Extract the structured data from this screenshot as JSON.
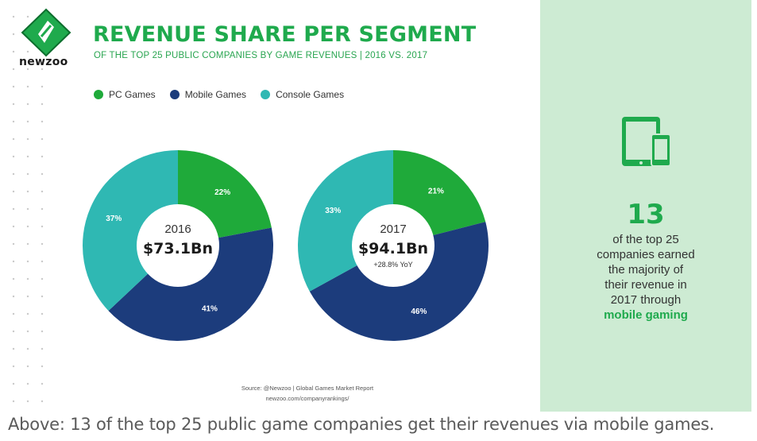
{
  "brand": {
    "name": "newzoo",
    "accent": "#1faa4d"
  },
  "title": "REVENUE SHARE PER SEGMENT",
  "subtitle": "OF THE TOP 25 PUBLIC COMPANIES BY GAME REVENUES | 2016 VS. 2017",
  "legend": [
    {
      "label": "PC Games",
      "color": "#1faa3a"
    },
    {
      "label": "Mobile Games",
      "color": "#1c3c7c"
    },
    {
      "label": "Console Games",
      "color": "#2fb8b3"
    }
  ],
  "chart_data": [
    {
      "type": "pie",
      "title": "2016",
      "center_year": "2016",
      "center_value": "$73.1Bn",
      "center_note": "",
      "categories": [
        "PC Games",
        "Mobile Games",
        "Console Games"
      ],
      "values": [
        22,
        41,
        37
      ],
      "labels": [
        "22%",
        "41%",
        "37%"
      ]
    },
    {
      "type": "pie",
      "title": "2017",
      "center_year": "2017",
      "center_value": "$94.1Bn",
      "center_note": "+28.8% YoY",
      "categories": [
        "PC Games",
        "Mobile Games",
        "Console Games"
      ],
      "values": [
        21,
        46,
        33
      ],
      "labels": [
        "21%",
        "46%",
        "33%"
      ]
    }
  ],
  "source": {
    "line1": "Source: @Newzoo | Global Games Market Report",
    "line2": "newzoo.com/companyrankings/"
  },
  "side_panel": {
    "icon": "tablet-phone-icon",
    "number": "13",
    "lines": [
      "of the top 25",
      "companies earned",
      "the majority of",
      "their revenue in",
      "2017 through"
    ],
    "highlight": "mobile gaming",
    "background": "#cdebd3"
  },
  "caption": "Above: 13 of the top 25 public game companies get their revenues via mobile games."
}
